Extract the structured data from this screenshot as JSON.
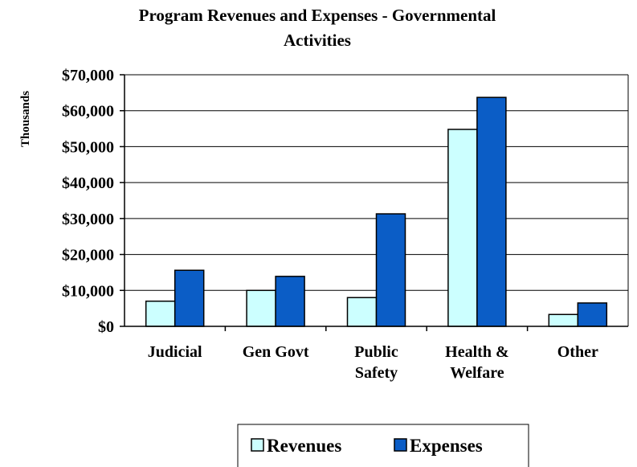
{
  "chart_data": {
    "type": "bar",
    "title_lines": [
      "Program Revenues and Expenses - Governmental",
      "Activities"
    ],
    "ylabel": "Thousands",
    "xlabel": "",
    "categories": [
      [
        "Judicial"
      ],
      [
        "Gen Govt"
      ],
      [
        "Public",
        "Safety"
      ],
      [
        "Health &",
        "Welfare"
      ],
      [
        "Other"
      ]
    ],
    "series": [
      {
        "name": "Revenues",
        "color": "#ccffff",
        "values": [
          7000,
          10000,
          8000,
          54800,
          3300
        ]
      },
      {
        "name": "Expenses",
        "color": "#0b5dc6",
        "values": [
          15600,
          13900,
          31300,
          63700,
          6500
        ]
      }
    ],
    "ylim": [
      0,
      70000
    ],
    "yticks": [
      0,
      10000,
      20000,
      30000,
      40000,
      50000,
      60000,
      70000
    ],
    "ytick_labels": [
      "$0",
      "$10,000",
      "$20,000",
      "$30,000",
      "$40,000",
      "$50,000",
      "$60,000",
      "$70,000"
    ],
    "grid": true,
    "legend_position": "bottom"
  }
}
